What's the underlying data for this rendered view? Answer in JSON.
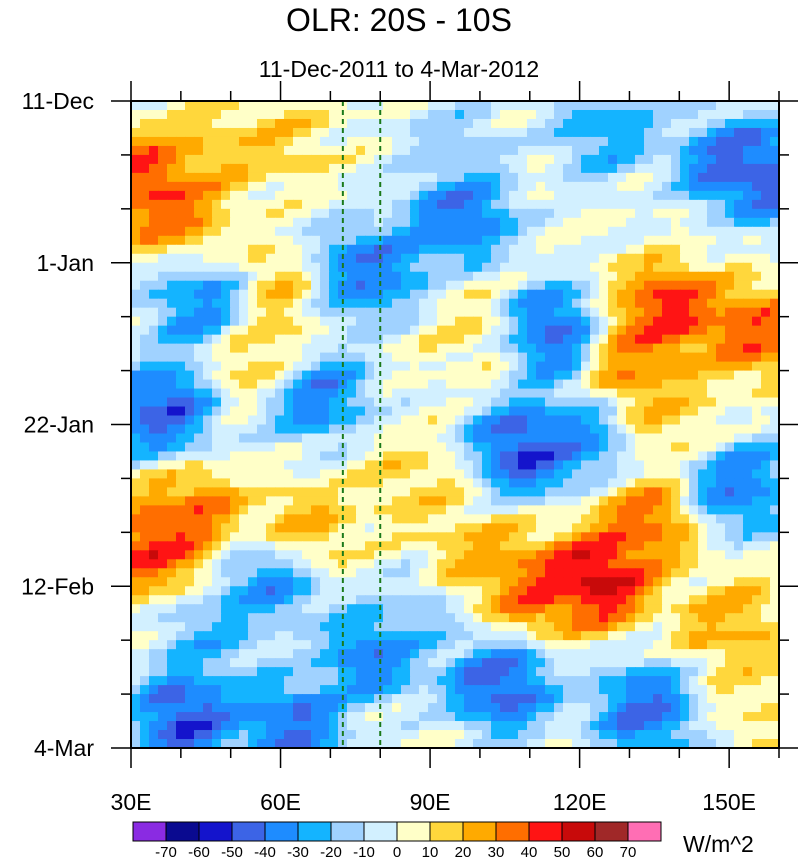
{
  "chart_data": {
    "type": "heatmap",
    "title": "OLR: 20S - 10S",
    "subtitle": "11-Dec-2011 to 4-Mar-2012",
    "xlabel": "",
    "ylabel": "",
    "x_range": [
      30,
      160
    ],
    "x_ticks": [
      {
        "value": 30,
        "label": "30E"
      },
      {
        "value": 60,
        "label": "60E"
      },
      {
        "value": 90,
        "label": "90E"
      },
      {
        "value": 120,
        "label": "120E"
      },
      {
        "value": 150,
        "label": "150E"
      }
    ],
    "y_range_days": [
      0,
      84
    ],
    "y_ticks": [
      {
        "day": 0,
        "label": "11-Dec"
      },
      {
        "day": 21,
        "label": "1-Jan"
      },
      {
        "day": 42,
        "label": "22-Jan"
      },
      {
        "day": 63,
        "label": "12-Feb"
      },
      {
        "day": 84,
        "label": "4-Mar"
      }
    ],
    "reference_lines_lon": [
      72.5,
      80
    ],
    "colorbar": {
      "units": "W/m^2",
      "levels": [
        -70,
        -60,
        -50,
        -40,
        -30,
        -20,
        -10,
        0,
        10,
        20,
        30,
        40,
        50,
        60,
        70
      ],
      "colors": [
        "#8a2be2",
        "#0a0a90",
        "#1414cc",
        "#3c64e6",
        "#1e8cff",
        "#14b4ff",
        "#a0d2ff",
        "#d2f0ff",
        "#ffffc8",
        "#ffd73c",
        "#ffaa00",
        "#ff6e00",
        "#ff1414",
        "#c80a0a",
        "#a02828",
        "#ff6eb4"
      ]
    },
    "anomaly_features": [
      {
        "lon": 33,
        "day": 10,
        "value": 55
      },
      {
        "lon": 38,
        "day": 14,
        "value": 45
      },
      {
        "lon": 46,
        "day": 7,
        "value": 25
      },
      {
        "lon": 60,
        "day": 5,
        "value": 20
      },
      {
        "lon": 95,
        "day": 6,
        "value": -20
      },
      {
        "lon": 125,
        "day": 4,
        "value": -35
      },
      {
        "lon": 150,
        "day": 8,
        "value": -55
      },
      {
        "lon": 160,
        "day": 10,
        "value": -60
      },
      {
        "lon": 96,
        "day": 15,
        "value": -55
      },
      {
        "lon": 80,
        "day": 22,
        "value": -45
      },
      {
        "lon": 72,
        "day": 23,
        "value": -50
      },
      {
        "lon": 44,
        "day": 27,
        "value": -45
      },
      {
        "lon": 63,
        "day": 24,
        "value": 30
      },
      {
        "lon": 56,
        "day": 33,
        "value": 25
      },
      {
        "lon": 36,
        "day": 40,
        "value": -60
      },
      {
        "lon": 67,
        "day": 38,
        "value": -50
      },
      {
        "lon": 100,
        "day": 30,
        "value": 15
      },
      {
        "lon": 113,
        "day": 30,
        "value": -60
      },
      {
        "lon": 138,
        "day": 27,
        "value": 58
      },
      {
        "lon": 155,
        "day": 30,
        "value": 50
      },
      {
        "lon": 132,
        "day": 34,
        "value": 40
      },
      {
        "lon": 109,
        "day": 45,
        "value": -65
      },
      {
        "lon": 120,
        "day": 44,
        "value": -40
      },
      {
        "lon": 152,
        "day": 50,
        "value": -50
      },
      {
        "lon": 138,
        "day": 41,
        "value": 20
      },
      {
        "lon": 86,
        "day": 50,
        "value": 20
      },
      {
        "lon": 42,
        "day": 54,
        "value": 45
      },
      {
        "lon": 34,
        "day": 58,
        "value": 55
      },
      {
        "lon": 64,
        "day": 56,
        "value": 30
      },
      {
        "lon": 58,
        "day": 62,
        "value": -45
      },
      {
        "lon": 124,
        "day": 62,
        "value": 72
      },
      {
        "lon": 133,
        "day": 55,
        "value": 45
      },
      {
        "lon": 112,
        "day": 63,
        "value": 50
      },
      {
        "lon": 100,
        "day": 60,
        "value": 30
      },
      {
        "lon": 150,
        "day": 68,
        "value": 30
      },
      {
        "lon": 88,
        "day": 67,
        "value": -20
      },
      {
        "lon": 46,
        "day": 70,
        "value": -30
      },
      {
        "lon": 78,
        "day": 72,
        "value": -50
      },
      {
        "lon": 41,
        "day": 80,
        "value": -65
      },
      {
        "lon": 62,
        "day": 81,
        "value": -55
      },
      {
        "lon": 104,
        "day": 76,
        "value": -60
      },
      {
        "lon": 133,
        "day": 79,
        "value": -55
      },
      {
        "lon": 157,
        "day": 78,
        "value": 15
      }
    ]
  }
}
